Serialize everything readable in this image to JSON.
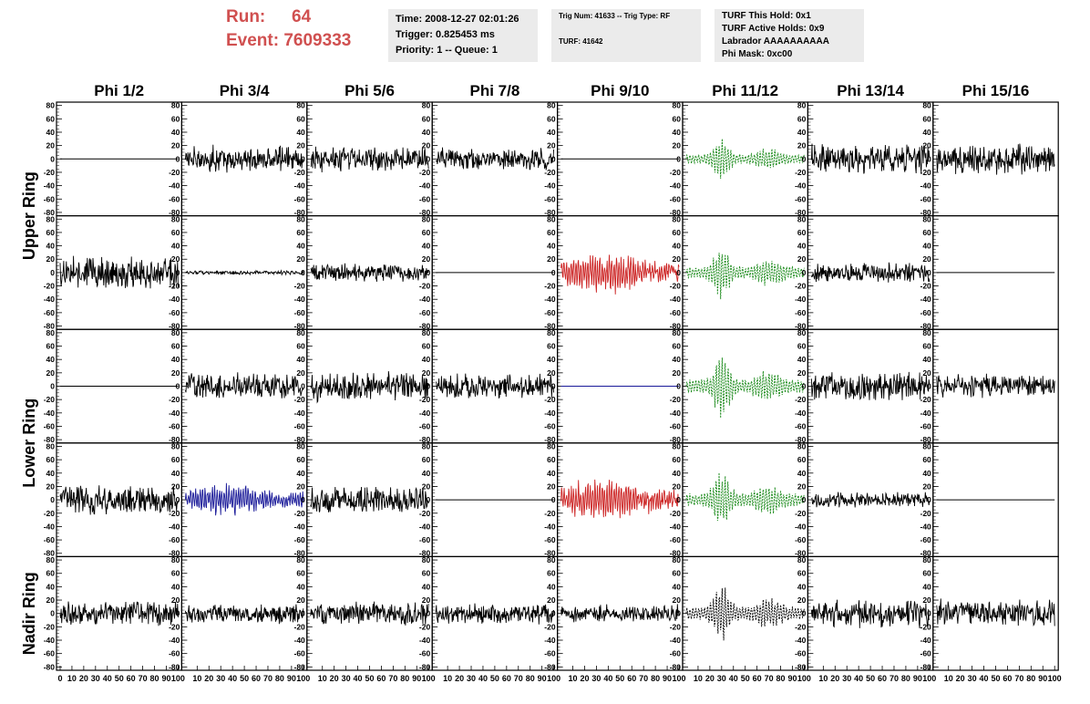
{
  "header": {
    "run_label": "Run:",
    "run_value": "64",
    "event_label": "Event:",
    "event_value": "7609333",
    "time": "Time: 2008-12-27 02:01:26",
    "trigger": "Trigger: 0.825453 ms",
    "priority": "Priority: 1 -- Queue: 1",
    "trig_num": "Trig Num: 41633 -- Trig Type: RF",
    "turf": "TURF: 41642",
    "turf_hold": "TURF This Hold: 0x1",
    "turf_active": "TURF Active Holds: 0x9",
    "labrador": "Labrador AAAAAAAAAA",
    "phi_mask": "Phi Mask: 0xc00"
  },
  "colors": {
    "run_text": "#d05050",
    "info_bg": "#ebebeb",
    "trace_black": "#000000",
    "trace_green": "#1a8a1a",
    "trace_red": "#cc2222",
    "trace_blue": "#1a1a99"
  },
  "chart_data": {
    "type": "line",
    "title": "",
    "columns": [
      "Phi 1/2",
      "Phi 3/4",
      "Phi 5/6",
      "Phi 7/8",
      "Phi 9/10",
      "Phi 11/12",
      "Phi 13/14",
      "Phi 15/16"
    ],
    "row_labels": [
      "Upper Ring",
      "Lower Ring",
      "Nadir Ring"
    ],
    "ylim": [
      -85,
      85
    ],
    "yticks": [
      -80,
      -60,
      -40,
      -20,
      0,
      20,
      40,
      60,
      80
    ],
    "xlim": [
      0,
      100
    ],
    "xticks": [
      0,
      10,
      20,
      30,
      40,
      50,
      60,
      70,
      80,
      90,
      100
    ],
    "grid": false,
    "panels": [
      {
        "row": 0,
        "col": 0,
        "style": "flat",
        "color": "black",
        "amp": 0,
        "dashed": false
      },
      {
        "row": 0,
        "col": 1,
        "style": "noise",
        "color": "black",
        "amp": 14,
        "dashed": false
      },
      {
        "row": 0,
        "col": 2,
        "style": "noise",
        "color": "black",
        "amp": 13,
        "dashed": false
      },
      {
        "row": 0,
        "col": 3,
        "style": "noise",
        "color": "black",
        "amp": 11,
        "dashed": false
      },
      {
        "row": 0,
        "col": 4,
        "style": "flat",
        "color": "black",
        "amp": 0,
        "dashed": false
      },
      {
        "row": 0,
        "col": 5,
        "style": "pulse",
        "color": "green",
        "amp": 20,
        "dashed": true
      },
      {
        "row": 0,
        "col": 6,
        "style": "noise",
        "color": "black",
        "amp": 16,
        "dashed": false
      },
      {
        "row": 0,
        "col": 7,
        "style": "noise",
        "color": "black",
        "amp": 16,
        "dashed": false
      },
      {
        "row": 1,
        "col": 0,
        "style": "noise",
        "color": "black",
        "amp": 17,
        "dashed": false
      },
      {
        "row": 1,
        "col": 1,
        "style": "noise",
        "color": "black",
        "amp": 2,
        "dashed": false
      },
      {
        "row": 1,
        "col": 2,
        "style": "noise",
        "color": "black",
        "amp": 10,
        "dashed": false
      },
      {
        "row": 1,
        "col": 3,
        "style": "flat",
        "color": "black",
        "amp": 0,
        "dashed": false
      },
      {
        "row": 1,
        "col": 4,
        "style": "burst",
        "color": "red",
        "amp": 24,
        "dashed": false
      },
      {
        "row": 1,
        "col": 5,
        "style": "pulse",
        "color": "green",
        "amp": 26,
        "dashed": true
      },
      {
        "row": 1,
        "col": 6,
        "style": "noise",
        "color": "black",
        "amp": 10,
        "dashed": false
      },
      {
        "row": 1,
        "col": 7,
        "style": "flat",
        "color": "black",
        "amp": 0,
        "dashed": false
      },
      {
        "row": 2,
        "col": 0,
        "style": "flat",
        "color": "black",
        "amp": 0,
        "dashed": false
      },
      {
        "row": 2,
        "col": 1,
        "style": "noise",
        "color": "black",
        "amp": 13,
        "dashed": false
      },
      {
        "row": 2,
        "col": 2,
        "style": "noise",
        "color": "black",
        "amp": 16,
        "dashed": false
      },
      {
        "row": 2,
        "col": 3,
        "style": "noise",
        "color": "black",
        "amp": 13,
        "dashed": false
      },
      {
        "row": 2,
        "col": 4,
        "style": "flat",
        "color": "blue",
        "amp": 0,
        "dashed": false
      },
      {
        "row": 2,
        "col": 5,
        "style": "pulse",
        "color": "green",
        "amp": 30,
        "dashed": true
      },
      {
        "row": 2,
        "col": 6,
        "style": "noise",
        "color": "black",
        "amp": 15,
        "dashed": false
      },
      {
        "row": 2,
        "col": 7,
        "style": "noise",
        "color": "black",
        "amp": 12,
        "dashed": false
      },
      {
        "row": 3,
        "col": 0,
        "style": "noise",
        "color": "black",
        "amp": 15,
        "dashed": false
      },
      {
        "row": 3,
        "col": 1,
        "style": "burst",
        "color": "blue",
        "amp": 18,
        "dashed": false
      },
      {
        "row": 3,
        "col": 2,
        "style": "noise",
        "color": "black",
        "amp": 14,
        "dashed": false
      },
      {
        "row": 3,
        "col": 3,
        "style": "flat",
        "color": "black",
        "amp": 0,
        "dashed": false
      },
      {
        "row": 3,
        "col": 4,
        "style": "burst",
        "color": "red",
        "amp": 24,
        "dashed": false
      },
      {
        "row": 3,
        "col": 5,
        "style": "pulse",
        "color": "green",
        "amp": 28,
        "dashed": true
      },
      {
        "row": 3,
        "col": 6,
        "style": "noise",
        "color": "black",
        "amp": 8,
        "dashed": false
      },
      {
        "row": 3,
        "col": 7,
        "style": "flat",
        "color": "black",
        "amp": 0,
        "dashed": false
      },
      {
        "row": 4,
        "col": 0,
        "style": "noise",
        "color": "black",
        "amp": 12,
        "dashed": false
      },
      {
        "row": 4,
        "col": 1,
        "style": "noise",
        "color": "black",
        "amp": 10,
        "dashed": false
      },
      {
        "row": 4,
        "col": 2,
        "style": "noise",
        "color": "black",
        "amp": 12,
        "dashed": false
      },
      {
        "row": 4,
        "col": 3,
        "style": "noise",
        "color": "black",
        "amp": 11,
        "dashed": false
      },
      {
        "row": 4,
        "col": 4,
        "style": "noise",
        "color": "black",
        "amp": 9,
        "dashed": false
      },
      {
        "row": 4,
        "col": 5,
        "style": "pulse",
        "color": "black",
        "amp": 28,
        "dashed": true
      },
      {
        "row": 4,
        "col": 6,
        "style": "noise",
        "color": "black",
        "amp": 14,
        "dashed": false
      },
      {
        "row": 4,
        "col": 7,
        "style": "noise",
        "color": "black",
        "amp": 14,
        "dashed": false
      }
    ]
  }
}
